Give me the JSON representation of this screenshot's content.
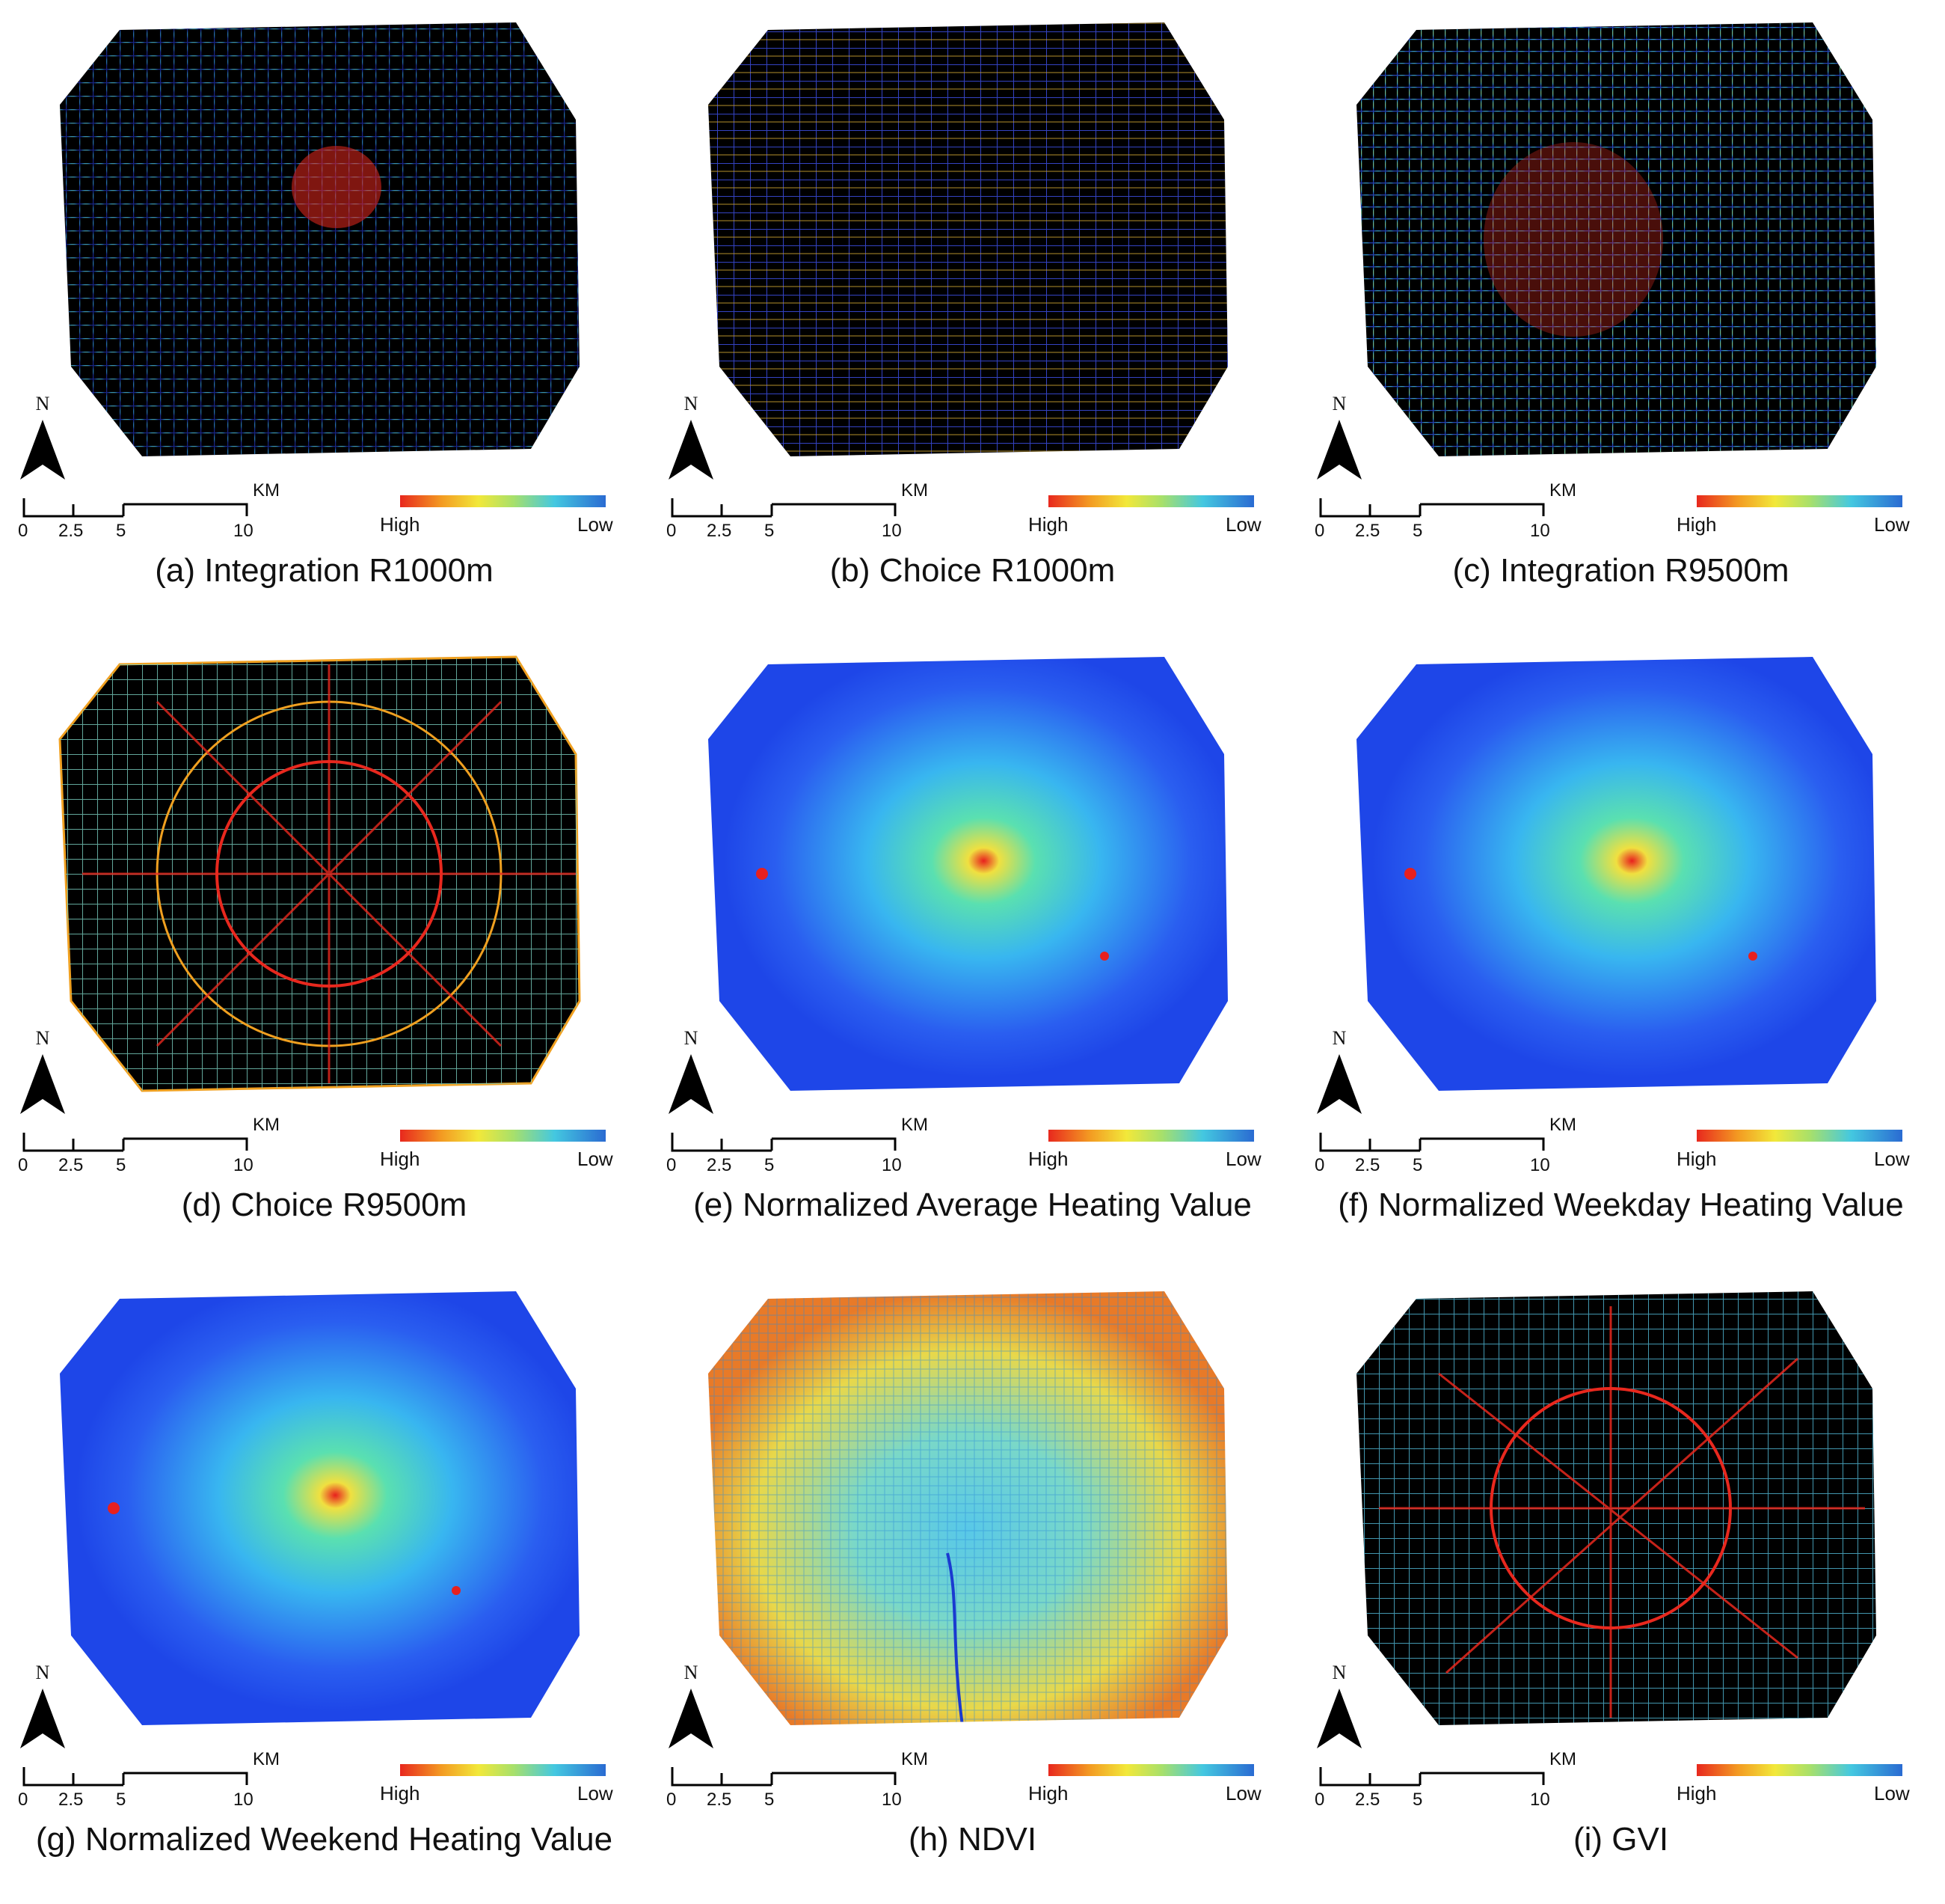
{
  "scale": {
    "unit": "KM",
    "ticks": [
      "0",
      "2.5",
      "5",
      "10"
    ]
  },
  "north_label": "N",
  "legend": {
    "high": "High",
    "low": "Low"
  },
  "colors": {
    "high": "#e8281e",
    "low": "#2a6bd2",
    "network_background": "#000000",
    "heat_background": "#1e46e8"
  },
  "panels": [
    {
      "caption": "(a) Integration R1000m",
      "style": "network",
      "icon": "street-network-map"
    },
    {
      "caption": "(b) Choice R1000m",
      "style": "network",
      "icon": "street-network-map"
    },
    {
      "caption": "(c) Integration R9500m",
      "style": "network",
      "icon": "street-network-map"
    },
    {
      "caption": "(d) Choice R9500m",
      "style": "network",
      "icon": "street-network-map"
    },
    {
      "caption": "(e) Normalized Average Heating Value",
      "style": "heat",
      "icon": "heat-map"
    },
    {
      "caption": "(f) Normalized Weekday Heating Value",
      "style": "heat",
      "icon": "heat-map"
    },
    {
      "caption": "(g) Normalized Weekend Heating Value",
      "style": "heat",
      "icon": "heat-map"
    },
    {
      "caption": "(h) NDVI",
      "style": "ndvi",
      "icon": "ndvi-raster-map"
    },
    {
      "caption": "(i) GVI",
      "style": "network",
      "icon": "street-network-map"
    }
  ]
}
